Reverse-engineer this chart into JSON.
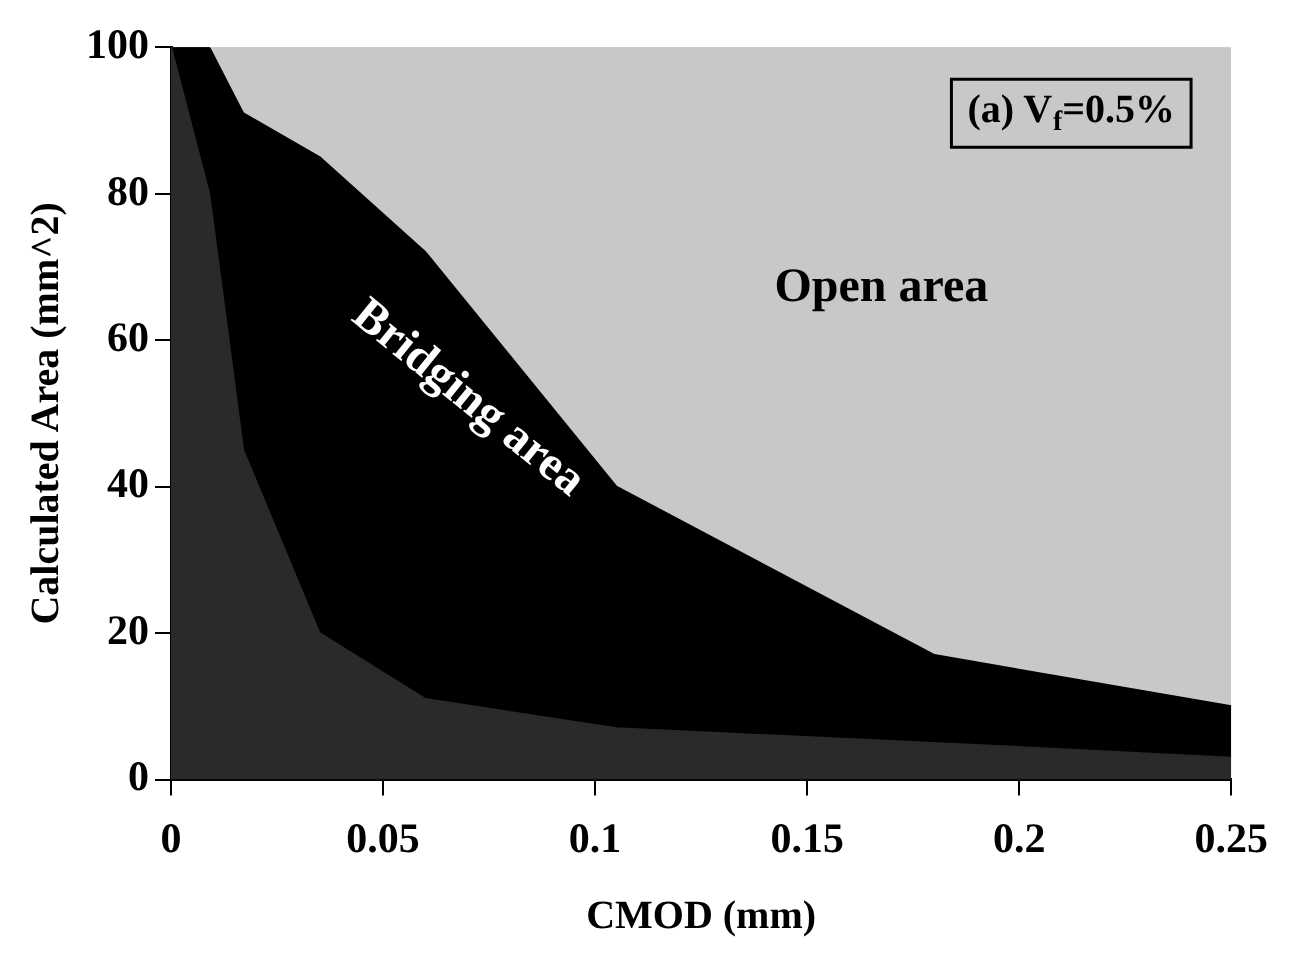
{
  "chart_data": {
    "type": "area",
    "xlabel": "CMOD (mm)",
    "ylabel": "Calculated Area (mm^2)",
    "x": [
      0,
      0.009,
      0.017,
      0.035,
      0.06,
      0.105,
      0.18,
      0.25
    ],
    "series": [
      {
        "color": "#2a2a2a",
        "values": [
          100,
          80,
          45,
          20,
          11,
          7,
          5,
          3
        ]
      },
      {
        "name": "Bridging area",
        "color": "#000000",
        "values": [
          100,
          100,
          91,
          85,
          72,
          40,
          17,
          10
        ]
      },
      {
        "name": "Open area",
        "color": "#c8c8c8",
        "values": [
          100,
          100,
          100,
          100,
          100,
          100,
          100,
          100
        ]
      }
    ],
    "xlim": [
      0,
      0.25
    ],
    "xticks": [
      0,
      0.05,
      0.1,
      0.15,
      0.2,
      0.25
    ],
    "ylim": [
      0,
      100
    ],
    "yticks": [
      0,
      20,
      40,
      60,
      80,
      100
    ],
    "annotations": [
      "(a) V$_{f}$=0.5%"
    ],
    "legend": false,
    "grid": false
  }
}
